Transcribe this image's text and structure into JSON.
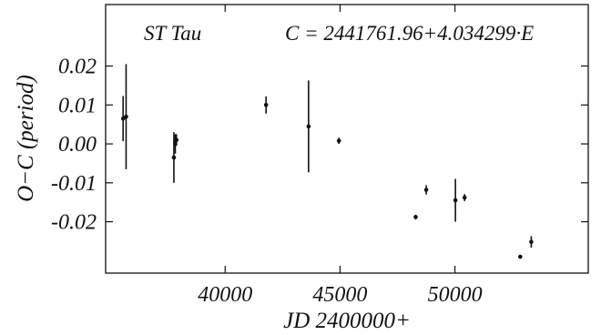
{
  "chart_data": {
    "type": "scatter",
    "title": "",
    "xlabel": "JD 2400000+",
    "ylabel": "O−C (period)",
    "xlim": [
      34800,
      55800
    ],
    "ylim": [
      -0.0332,
      0.0358
    ],
    "x_ticks": [
      40000,
      45000,
      50000
    ],
    "x_tick_labels": [
      "40000",
      "45000",
      "50000"
    ],
    "y_ticks": [
      0.02,
      0.01,
      0.0,
      -0.01,
      -0.02
    ],
    "y_tick_labels": [
      "0.02",
      "0.01",
      "0.00",
      "-0.01",
      "-0.02"
    ],
    "grid": false,
    "annotations": {
      "star": "ST Tau",
      "ephemeris": "C = 2441761.96+4.034299·E"
    },
    "series": [
      {
        "marker": "filled-circle",
        "errorbars": true,
        "points": [
          {
            "x": 35560,
            "y": 0.0065,
            "err": 0.0058
          },
          {
            "x": 35690,
            "y": 0.007,
            "err": 0.0135
          },
          {
            "x": 37770,
            "y": -0.0035,
            "err": 0.0065
          },
          {
            "x": 37830,
            "y": 0.0,
            "err": 0.0025
          },
          {
            "x": 37880,
            "y": 0.001,
            "err": 0.0015
          },
          {
            "x": 41780,
            "y": 0.01,
            "err": 0.0022
          },
          {
            "x": 43630,
            "y": 0.0045,
            "err": 0.0118
          },
          {
            "x": 44950,
            "y": 0.0008,
            "err": 0.0008
          },
          {
            "x": 48290,
            "y": -0.0188,
            "err": 0.0006
          },
          {
            "x": 48750,
            "y": -0.0118,
            "err": 0.0012
          },
          {
            "x": 50020,
            "y": -0.0145,
            "err": 0.0055
          },
          {
            "x": 50420,
            "y": -0.0138,
            "err": 0.0009
          },
          {
            "x": 52840,
            "y": -0.029,
            "err": 0.0004
          },
          {
            "x": 53320,
            "y": -0.0252,
            "err": 0.0015
          }
        ]
      }
    ]
  }
}
